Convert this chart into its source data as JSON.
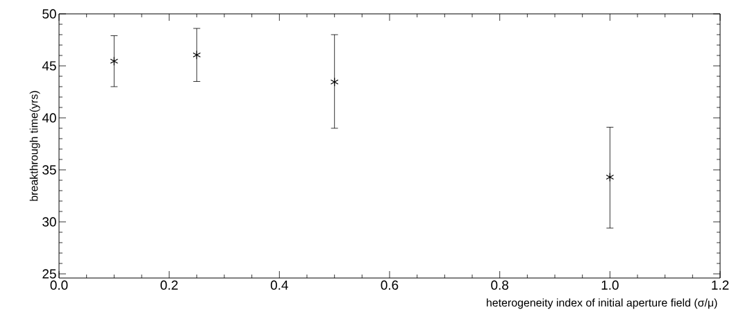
{
  "chart_data": {
    "type": "scatter",
    "xlabel": "heterogeneity index of initial aperture field (σ/μ)",
    "ylabel": "breakthrough time(yrs)",
    "x": [
      0.1,
      0.25,
      0.5,
      1.0
    ],
    "values": [
      45.45,
      46.05,
      43.45,
      34.3
    ],
    "errors": [
      [
        43.0,
        47.9
      ],
      [
        43.5,
        48.6
      ],
      [
        39.0,
        48.0
      ],
      [
        29.4,
        39.1
      ]
    ],
    "color": "#000000",
    "marker": "cross",
    "xlim": [
      0.0,
      1.2
    ],
    "xticks": [
      {
        "value": 0.0,
        "label": "0.0"
      },
      {
        "value": 0.2,
        "label": "0.2"
      },
      {
        "value": 0.4,
        "label": "0.4"
      },
      {
        "value": 0.6,
        "label": "0.6"
      },
      {
        "value": 0.8,
        "label": "0.8"
      },
      {
        "value": 1.0,
        "label": "1.0"
      },
      {
        "value": 1.2,
        "label": "1.2"
      }
    ],
    "ylim": [
      24.6,
      50
    ],
    "yticks": [
      25,
      30,
      35,
      40,
      45,
      50
    ]
  }
}
